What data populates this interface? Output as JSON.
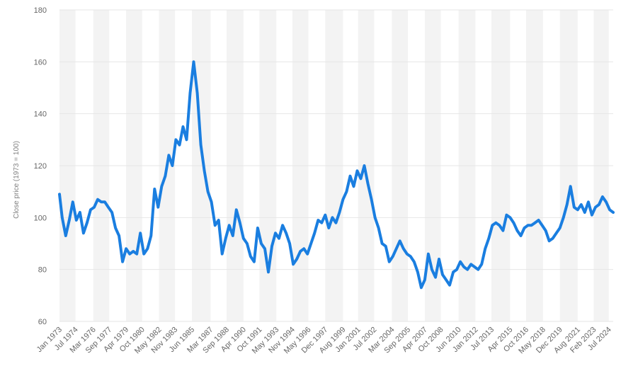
{
  "chart_data": {
    "type": "line",
    "title": "",
    "xlabel": "",
    "ylabel": "Close price (1973 = 100)",
    "ylim": [
      60,
      180
    ],
    "y_ticks": [
      "60",
      "80",
      "100",
      "120",
      "140",
      "160",
      "180"
    ],
    "grid": "horizontal",
    "x_tick_labels": [
      "Jan 1973",
      "Jul 1974",
      "Mar 1976",
      "Sep 1977",
      "Apr 1979",
      "Oct 1980",
      "May 1982",
      "Nov 1983",
      "Jun 1985",
      "Mar 1987",
      "Sep 1988",
      "Apr 1990",
      "Oct 1991",
      "May 1993",
      "Nov 1994",
      "May 1996",
      "Dec 1997",
      "Aug 1999",
      "Jan 2001",
      "Jul 2002",
      "Mar 2004",
      "Sep 2005",
      "Apr 2007",
      "Oct 2008",
      "Jun 2010",
      "Jan 2012",
      "Jul 2013",
      "Apr 2015",
      "Oct 2016",
      "May 2018",
      "Dec 2019",
      "Aug 2021",
      "Feb 2023",
      "Jul 2024"
    ],
    "colors": {
      "line": "#1a7ee0",
      "band": "#f3f3f3",
      "grid": "#e6e6e6"
    },
    "series": [
      {
        "values": [
          [
            "1973-01",
            109
          ],
          [
            "1973-04",
            100
          ],
          [
            "1973-08",
            93
          ],
          [
            "1973-12",
            99
          ],
          [
            "1974-04",
            106
          ],
          [
            "1974-08",
            99
          ],
          [
            "1974-12",
            102
          ],
          [
            "1975-04",
            94
          ],
          [
            "1975-08",
            98
          ],
          [
            "1975-12",
            103
          ],
          [
            "1976-04",
            104
          ],
          [
            "1976-08",
            107
          ],
          [
            "1976-12",
            106
          ],
          [
            "1977-04",
            106
          ],
          [
            "1977-08",
            104
          ],
          [
            "1977-12",
            102
          ],
          [
            "1978-04",
            96
          ],
          [
            "1978-08",
            93
          ],
          [
            "1978-12",
            83
          ],
          [
            "1979-04",
            88
          ],
          [
            "1979-08",
            86
          ],
          [
            "1979-12",
            87
          ],
          [
            "1980-04",
            86
          ],
          [
            "1980-08",
            94
          ],
          [
            "1980-12",
            86
          ],
          [
            "1981-04",
            88
          ],
          [
            "1981-08",
            93
          ],
          [
            "1981-12",
            111
          ],
          [
            "1982-04",
            104
          ],
          [
            "1982-08",
            112
          ],
          [
            "1982-12",
            116
          ],
          [
            "1983-04",
            124
          ],
          [
            "1983-08",
            120
          ],
          [
            "1983-12",
            130
          ],
          [
            "1984-04",
            128
          ],
          [
            "1984-08",
            135
          ],
          [
            "1984-12",
            130
          ],
          [
            "1985-04",
            148
          ],
          [
            "1985-08",
            160
          ],
          [
            "1985-12",
            148
          ],
          [
            "1986-04",
            128
          ],
          [
            "1986-08",
            118
          ],
          [
            "1986-12",
            110
          ],
          [
            "1987-04",
            106
          ],
          [
            "1987-08",
            97
          ],
          [
            "1987-12",
            99
          ],
          [
            "1988-04",
            86
          ],
          [
            "1988-08",
            92
          ],
          [
            "1988-12",
            97
          ],
          [
            "1989-04",
            93
          ],
          [
            "1989-08",
            103
          ],
          [
            "1989-12",
            98
          ],
          [
            "1990-04",
            92
          ],
          [
            "1990-08",
            90
          ],
          [
            "1990-12",
            85
          ],
          [
            "1991-04",
            83
          ],
          [
            "1991-08",
            96
          ],
          [
            "1991-12",
            90
          ],
          [
            "1992-04",
            88
          ],
          [
            "1992-08",
            79
          ],
          [
            "1992-12",
            89
          ],
          [
            "1993-04",
            94
          ],
          [
            "1993-08",
            92
          ],
          [
            "1993-12",
            97
          ],
          [
            "1994-04",
            94
          ],
          [
            "1994-08",
            90
          ],
          [
            "1994-12",
            82
          ],
          [
            "1995-04",
            84
          ],
          [
            "1995-08",
            87
          ],
          [
            "1995-12",
            88
          ],
          [
            "1996-04",
            86
          ],
          [
            "1996-08",
            90
          ],
          [
            "1996-12",
            94
          ],
          [
            "1997-04",
            99
          ],
          [
            "1997-08",
            98
          ],
          [
            "1997-12",
            101
          ],
          [
            "1998-04",
            96
          ],
          [
            "1998-08",
            100
          ],
          [
            "1998-12",
            98
          ],
          [
            "1999-04",
            102
          ],
          [
            "1999-08",
            107
          ],
          [
            "1999-12",
            110
          ],
          [
            "2000-04",
            116
          ],
          [
            "2000-08",
            112
          ],
          [
            "2000-12",
            118
          ],
          [
            "2001-04",
            115
          ],
          [
            "2001-08",
            120
          ],
          [
            "2001-12",
            113
          ],
          [
            "2002-04",
            107
          ],
          [
            "2002-08",
            100
          ],
          [
            "2002-12",
            96
          ],
          [
            "2003-04",
            90
          ],
          [
            "2003-08",
            89
          ],
          [
            "2003-12",
            83
          ],
          [
            "2004-04",
            85
          ],
          [
            "2004-08",
            88
          ],
          [
            "2004-12",
            91
          ],
          [
            "2005-04",
            88
          ],
          [
            "2005-08",
            86
          ],
          [
            "2005-12",
            85
          ],
          [
            "2006-04",
            83
          ],
          [
            "2006-08",
            79
          ],
          [
            "2006-12",
            73
          ],
          [
            "2007-04",
            76
          ],
          [
            "2007-08",
            86
          ],
          [
            "2007-12",
            80
          ],
          [
            "2008-04",
            77
          ],
          [
            "2008-08",
            84
          ],
          [
            "2008-12",
            78
          ],
          [
            "2009-04",
            76
          ],
          [
            "2009-08",
            74
          ],
          [
            "2009-12",
            79
          ],
          [
            "2010-04",
            80
          ],
          [
            "2010-08",
            83
          ],
          [
            "2010-12",
            81
          ],
          [
            "2011-04",
            80
          ],
          [
            "2011-08",
            82
          ],
          [
            "2011-12",
            81
          ],
          [
            "2012-04",
            80
          ],
          [
            "2012-08",
            82
          ],
          [
            "2012-12",
            88
          ],
          [
            "2013-04",
            92
          ],
          [
            "2013-08",
            97
          ],
          [
            "2013-12",
            98
          ],
          [
            "2014-04",
            97
          ],
          [
            "2014-08",
            95
          ],
          [
            "2014-12",
            101
          ],
          [
            "2015-04",
            100
          ],
          [
            "2015-08",
            98
          ],
          [
            "2015-12",
            95
          ],
          [
            "2016-04",
            93
          ],
          [
            "2016-08",
            96
          ],
          [
            "2016-12",
            97
          ],
          [
            "2017-04",
            97
          ],
          [
            "2017-08",
            98
          ],
          [
            "2017-12",
            99
          ],
          [
            "2018-04",
            97
          ],
          [
            "2018-08",
            95
          ],
          [
            "2018-12",
            91
          ],
          [
            "2019-04",
            92
          ],
          [
            "2019-08",
            94
          ],
          [
            "2019-12",
            96
          ],
          [
            "2020-04",
            100
          ],
          [
            "2020-08",
            105
          ],
          [
            "2020-12",
            112
          ],
          [
            "2021-04",
            104
          ],
          [
            "2021-08",
            103
          ],
          [
            "2021-12",
            105
          ],
          [
            "2022-04",
            102
          ],
          [
            "2022-08",
            106
          ],
          [
            "2022-12",
            101
          ],
          [
            "2023-04",
            104
          ],
          [
            "2023-08",
            105
          ],
          [
            "2023-12",
            108
          ],
          [
            "2024-04",
            106
          ],
          [
            "2024-08",
            103
          ],
          [
            "2024-12",
            102
          ]
        ]
      }
    ]
  }
}
